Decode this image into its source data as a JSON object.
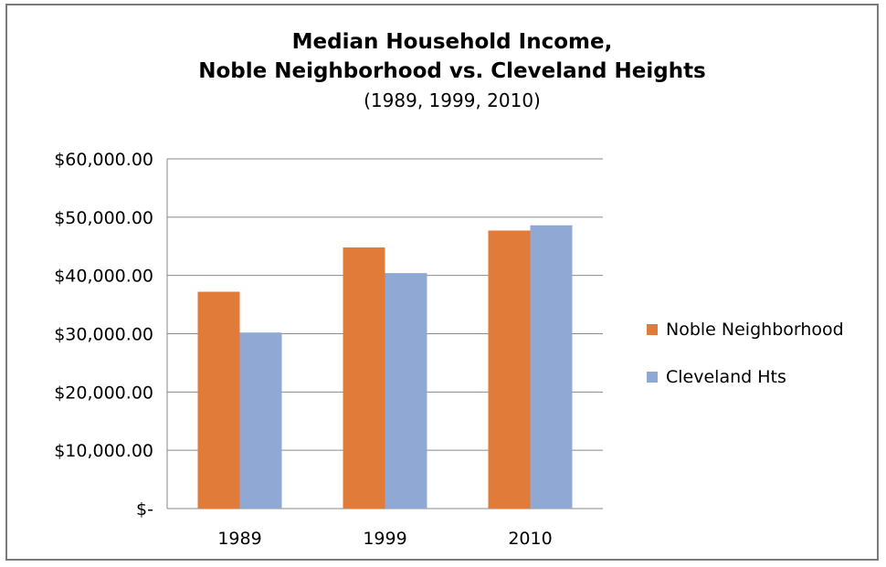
{
  "chart_data": {
    "type": "bar",
    "title": [
      "Median Household Income,",
      "Noble Neighborhood vs. Cleveland Heights"
    ],
    "subtitle": "(1989, 1999, 2010)",
    "categories": [
      "1989",
      "1999",
      "2010"
    ],
    "series": [
      {
        "name": "Noble Neighborhood",
        "color": "#e07b39",
        "values": [
          37200,
          44800,
          47700
        ]
      },
      {
        "name": "Cleveland Hts",
        "color": "#8fa8d4",
        "values": [
          30200,
          40400,
          48600
        ]
      }
    ],
    "ylim": [
      0,
      60000
    ],
    "yticks": [
      0,
      10000,
      20000,
      30000,
      40000,
      50000,
      60000
    ],
    "ytick_labels": [
      "$-",
      "$10,000.00",
      "$20,000.00",
      "$30,000.00",
      "$40,000.00",
      "$50,000.00",
      "$60,000.00"
    ],
    "grid": true,
    "legend_position": "right"
  }
}
